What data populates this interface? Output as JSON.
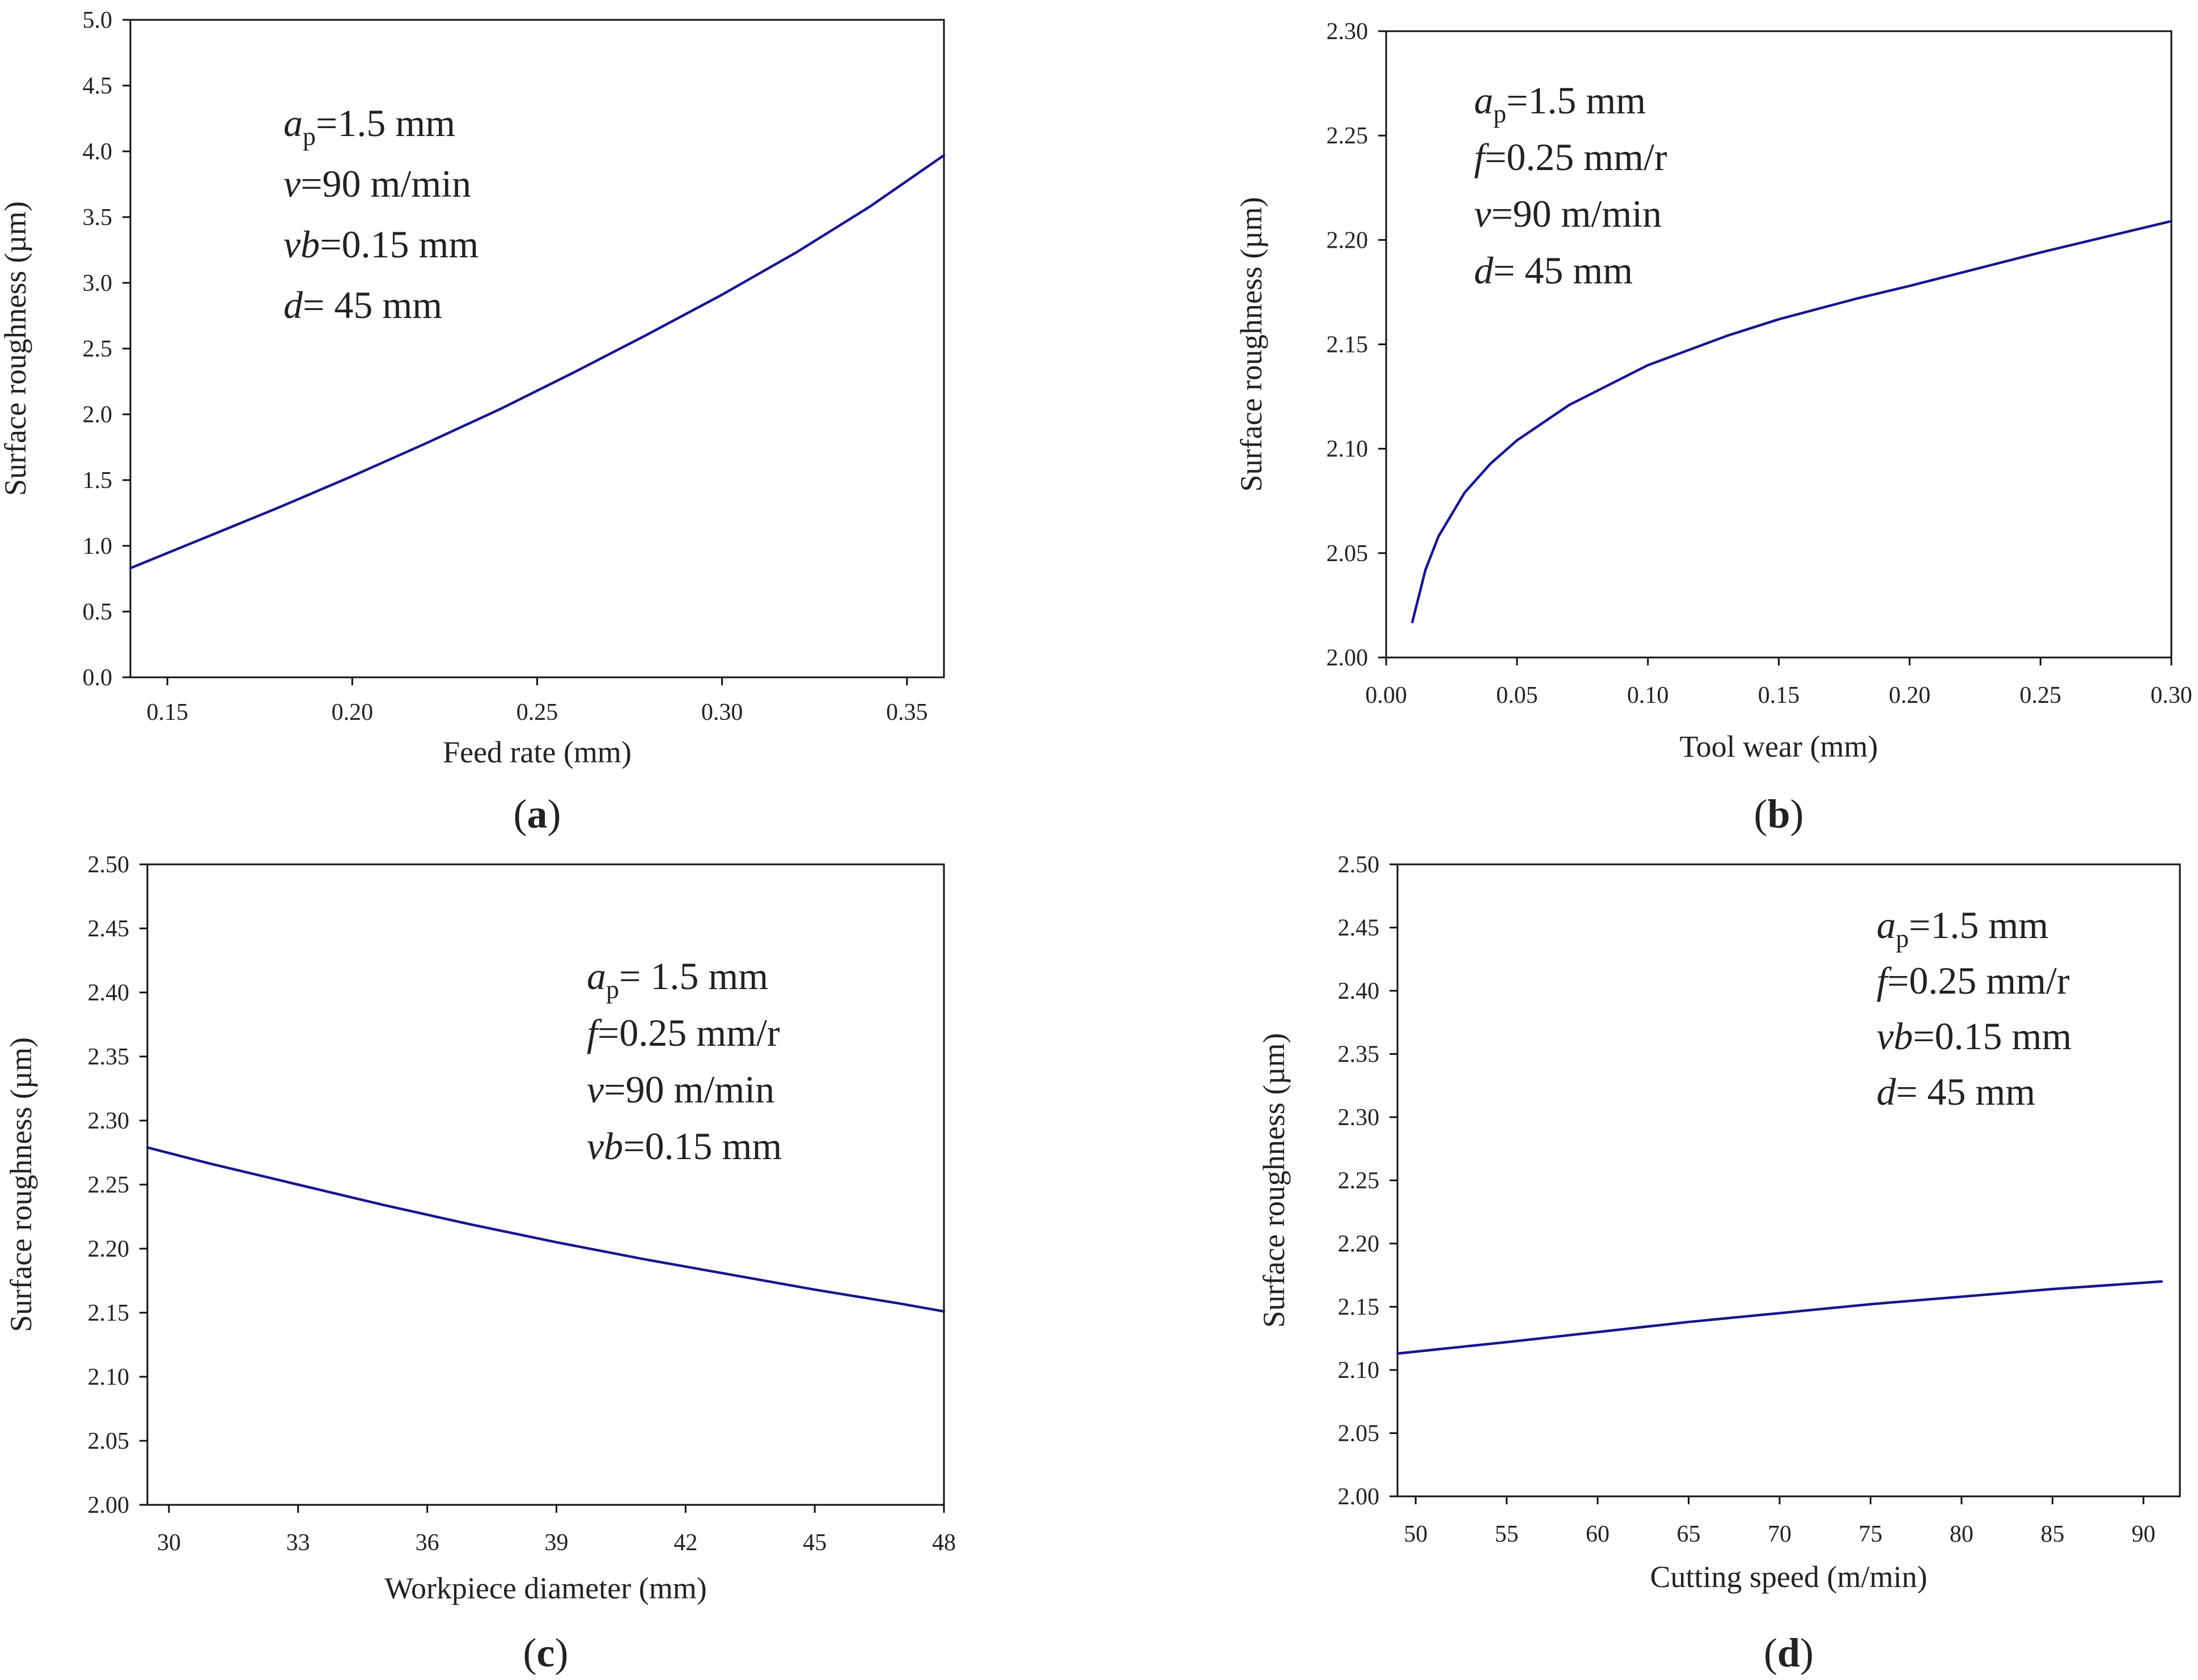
{
  "colors": {
    "curve": "#16168f",
    "axis": "#111111",
    "text": "#222222"
  },
  "chart_data": [
    {
      "id": "a",
      "type": "line",
      "panel_label": "a",
      "xlabel": "Feed rate (mm)",
      "ylabel": "Surface roughness (µm)",
      "xlim": [
        0.14,
        0.36
      ],
      "ylim": [
        0.0,
        5.0
      ],
      "xticks": [
        0.15,
        0.2,
        0.25,
        0.3,
        0.35
      ],
      "xtick_labels": [
        "0.15",
        "0.20",
        "0.25",
        "0.30",
        "0.35"
      ],
      "yticks": [
        0.0,
        0.5,
        1.0,
        1.5,
        2.0,
        2.5,
        3.0,
        3.5,
        4.0,
        4.5,
        5.0
      ],
      "ytick_labels": [
        "0.0",
        "0.5",
        "1.0",
        "1.5",
        "2.0",
        "2.5",
        "3.0",
        "3.5",
        "4.0",
        "4.5",
        "5.0"
      ],
      "series": [
        {
          "name": "Surface roughness",
          "x": [
            0.14,
            0.16,
            0.18,
            0.2,
            0.22,
            0.24,
            0.26,
            0.28,
            0.3,
            0.32,
            0.34,
            0.36
          ],
          "y": [
            0.83,
            1.06,
            1.29,
            1.53,
            1.78,
            2.04,
            2.32,
            2.61,
            2.91,
            3.23,
            3.58,
            3.97
          ]
        }
      ],
      "annotations": [
        {
          "italic": "a",
          "sub": "p",
          "rest": "=1.5 mm"
        },
        {
          "italic": "v",
          "sub": "",
          "rest": "=90 m/min"
        },
        {
          "italic": "vb",
          "sub": "",
          "rest": "=0.15 mm"
        },
        {
          "italic": "d",
          "sub": "",
          "rest": "= 45 mm"
        }
      ]
    },
    {
      "id": "b",
      "type": "line",
      "panel_label": "b",
      "xlabel": "Tool wear (mm)",
      "ylabel": "Surface roughness (µm)",
      "xlim": [
        0.0,
        0.3
      ],
      "ylim": [
        2.0,
        2.3
      ],
      "xticks": [
        0.0,
        0.05,
        0.1,
        0.15,
        0.2,
        0.25,
        0.3
      ],
      "xtick_labels": [
        "0.00",
        "0.05",
        "0.10",
        "0.15",
        "0.20",
        "0.25",
        "0.30"
      ],
      "yticks": [
        2.0,
        2.05,
        2.1,
        2.15,
        2.2,
        2.25,
        2.3
      ],
      "ytick_labels": [
        "2.00",
        "2.05",
        "2.10",
        "2.15",
        "2.20",
        "2.25",
        "2.30"
      ],
      "series": [
        {
          "name": "Surface roughness",
          "x": [
            0.01,
            0.015,
            0.02,
            0.03,
            0.04,
            0.05,
            0.07,
            0.1,
            0.13,
            0.15,
            0.18,
            0.2,
            0.25,
            0.3
          ],
          "y": [
            2.017,
            2.042,
            2.058,
            2.079,
            2.093,
            2.104,
            2.121,
            2.14,
            2.154,
            2.162,
            2.172,
            2.178,
            2.194,
            2.209
          ]
        }
      ],
      "annotations": [
        {
          "italic": "a",
          "sub": "p",
          "rest": "=1.5 mm"
        },
        {
          "italic": "f",
          "sub": "",
          "rest": "=0.25 mm/r"
        },
        {
          "italic": "v",
          "sub": "",
          "rest": "=90 m/min"
        },
        {
          "italic": "d",
          "sub": "",
          "rest": "= 45 mm"
        }
      ]
    },
    {
      "id": "c",
      "type": "line",
      "panel_label": "c",
      "xlabel": "Workpiece diameter (mm)",
      "ylabel": "Surface roughness (µm)",
      "xlim": [
        29.5,
        48.0
      ],
      "ylim": [
        2.0,
        2.5
      ],
      "xticks": [
        30,
        33,
        36,
        39,
        42,
        45,
        48
      ],
      "xtick_labels": [
        "30",
        "33",
        "36",
        "39",
        "42",
        "45",
        "48"
      ],
      "yticks": [
        2.0,
        2.05,
        2.1,
        2.15,
        2.2,
        2.25,
        2.3,
        2.35,
        2.4,
        2.45,
        2.5
      ],
      "ytick_labels": [
        "2.00",
        "2.05",
        "2.10",
        "2.15",
        "2.20",
        "2.25",
        "2.30",
        "2.35",
        "2.40",
        "2.45",
        "2.50"
      ],
      "series": [
        {
          "name": "Surface roughness",
          "x": [
            29.5,
            31,
            33,
            35,
            37,
            39,
            41,
            43,
            45,
            47,
            48
          ],
          "y": [
            2.279,
            2.266,
            2.25,
            2.234,
            2.219,
            2.205,
            2.192,
            2.18,
            2.168,
            2.157,
            2.151
          ]
        }
      ],
      "annotations": [
        {
          "italic": "a",
          "sub": "p",
          "rest": "= 1.5 mm"
        },
        {
          "italic": "f",
          "sub": "",
          "rest": "=0.25 mm/r"
        },
        {
          "italic": "v",
          "sub": "",
          "rest": "=90 m/min"
        },
        {
          "italic": "vb",
          "sub": "",
          "rest": "=0.15 mm"
        }
      ]
    },
    {
      "id": "d",
      "type": "line",
      "panel_label": "d",
      "xlabel": "Cutting speed (m/min)",
      "ylabel": "Surface roughness (µm)",
      "xlim": [
        49.0,
        92.0
      ],
      "ylim": [
        2.0,
        2.5
      ],
      "xticks": [
        50,
        55,
        60,
        65,
        70,
        75,
        80,
        85,
        90
      ],
      "xtick_labels": [
        "50",
        "55",
        "60",
        "65",
        "70",
        "75",
        "80",
        "85",
        "90"
      ],
      "yticks": [
        2.0,
        2.05,
        2.1,
        2.15,
        2.2,
        2.25,
        2.3,
        2.35,
        2.4,
        2.45,
        2.5
      ],
      "ytick_labels": [
        "2.00",
        "2.05",
        "2.10",
        "2.15",
        "2.20",
        "2.25",
        "2.30",
        "2.35",
        "2.40",
        "2.45",
        "2.50"
      ],
      "series": [
        {
          "name": "Surface roughness",
          "x": [
            49,
            55,
            60,
            65,
            70,
            75,
            80,
            85,
            91
          ],
          "y": [
            2.113,
            2.122,
            2.13,
            2.138,
            2.145,
            2.152,
            2.158,
            2.164,
            2.17
          ]
        }
      ],
      "annotations": [
        {
          "italic": "a",
          "sub": "p",
          "rest": "=1.5 mm"
        },
        {
          "italic": "f",
          "sub": "",
          "rest": "=0.25 mm/r"
        },
        {
          "italic": "vb",
          "sub": "",
          "rest": "=0.15 mm"
        },
        {
          "italic": "d",
          "sub": "",
          "rest": "= 45 mm"
        }
      ]
    }
  ]
}
